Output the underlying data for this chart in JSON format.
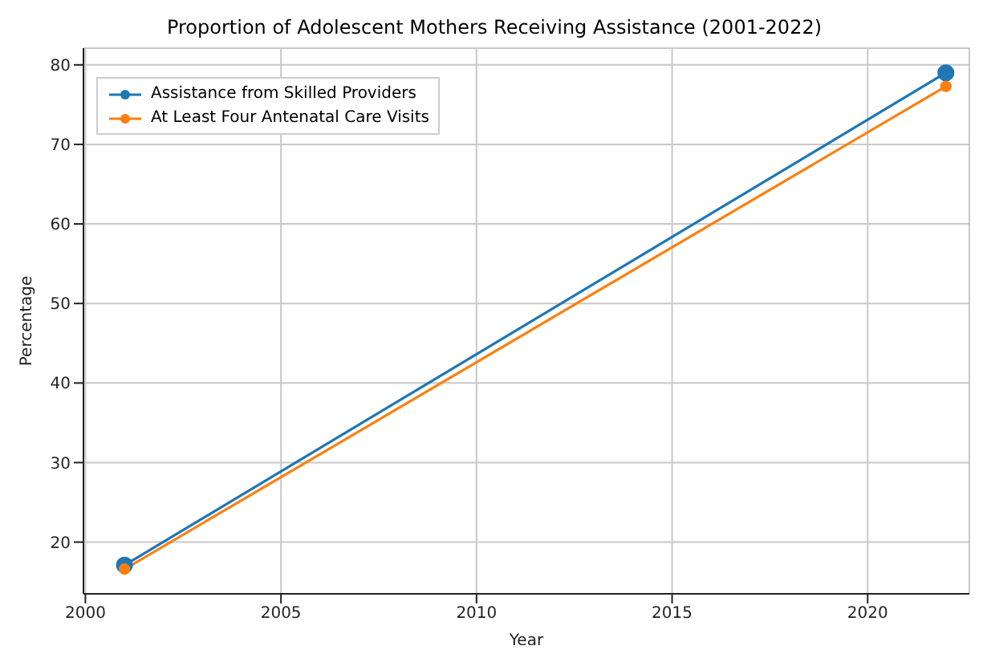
{
  "chart_data": {
    "type": "line",
    "title": "Proportion of Adolescent Mothers Receiving Assistance (2001-2022)",
    "xlabel": "Year",
    "ylabel": "Percentage",
    "x": [
      2001,
      2022
    ],
    "series": [
      {
        "name": "Assistance from Skilled Providers",
        "color": "#1f77b4",
        "values": [
          17.1,
          79
        ]
      },
      {
        "name": "At Least Four Antenatal Care Visits",
        "color": "#ff7f0e",
        "values": [
          16.6,
          77.3
        ]
      }
    ],
    "xlim": [
      1999.95,
      2022.6
    ],
    "xticks": [
      2000,
      2005,
      2010,
      2015,
      2020
    ],
    "ylim": [
      13.5,
      82.1
    ],
    "yticks": [
      20,
      30,
      40,
      50,
      60,
      70,
      80
    ],
    "grid": true,
    "legend": "top left",
    "marker": "circle",
    "line_style": "solid"
  }
}
